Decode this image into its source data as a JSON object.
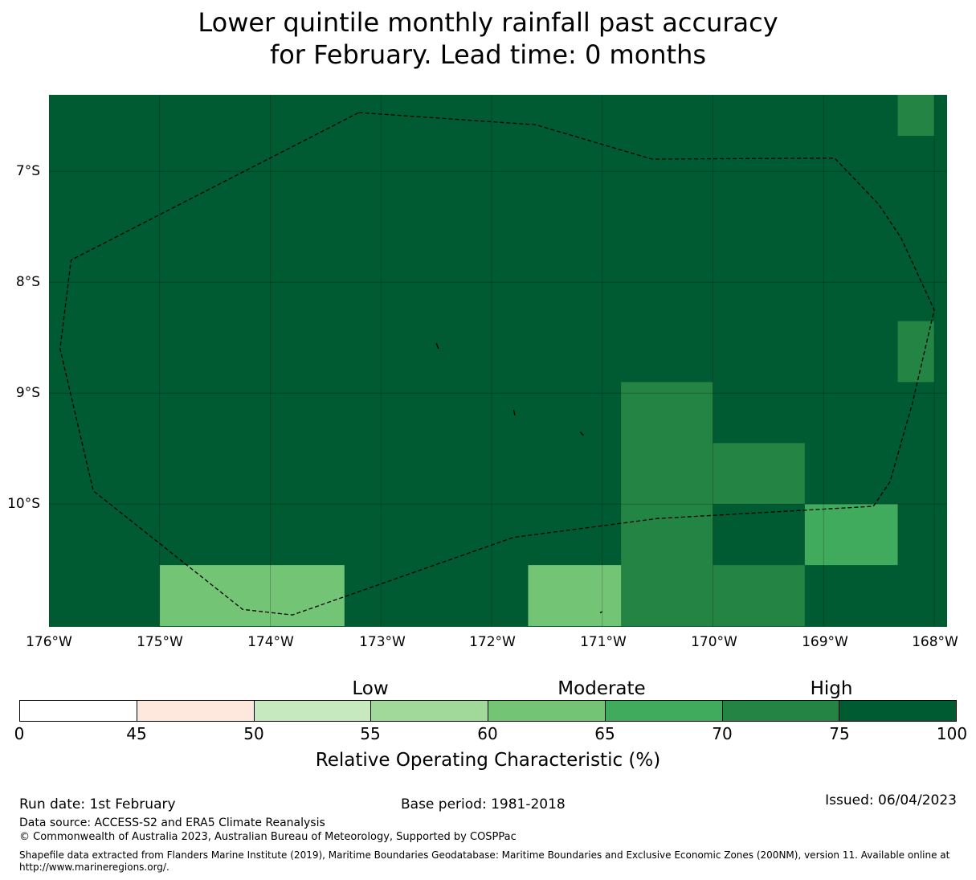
{
  "title": {
    "line1": "Lower quintile monthly rainfall past accuracy",
    "line2": "for February. Lead time: 0 months"
  },
  "map": {
    "latitude_labels": [
      "7°S",
      "8°S",
      "9°S",
      "10°S"
    ],
    "longitude_labels": [
      "176°W",
      "175°W",
      "174°W",
      "173°W",
      "172°W",
      "171°W",
      "170°W",
      "169°W",
      "168°W"
    ],
    "base_color": "#005a32",
    "cells": [
      {
        "lon_w": 168.33,
        "lon_e": 168.0,
        "lat_n": 6.31,
        "lat_s": 6.68,
        "color": "#238443"
      },
      {
        "lon_w": 168.33,
        "lon_e": 168.0,
        "lat_n": 8.35,
        "lat_s": 8.9,
        "color": "#238443"
      },
      {
        "lon_w": 170.83,
        "lon_e": 170.0,
        "lat_n": 8.9,
        "lat_s": 11.1,
        "color": "#238443"
      },
      {
        "lon_w": 170.0,
        "lon_e": 169.17,
        "lat_n": 9.45,
        "lat_s": 10.0,
        "color": "#238443"
      },
      {
        "lon_w": 170.0,
        "lon_e": 169.17,
        "lat_n": 10.55,
        "lat_s": 11.1,
        "color": "#238443"
      },
      {
        "lon_w": 169.17,
        "lon_e": 168.33,
        "lat_n": 10.0,
        "lat_s": 10.55,
        "color": "#41ab5d"
      },
      {
        "lon_w": 175.0,
        "lon_e": 173.33,
        "lat_n": 10.55,
        "lat_s": 11.1,
        "color": "#74c476"
      },
      {
        "lon_w": 171.67,
        "lon_e": 170.83,
        "lat_n": 10.55,
        "lat_s": 11.1,
        "color": "#74c476"
      }
    ],
    "eez_boundary": [
      [
        173.2,
        6.47
      ],
      [
        171.6,
        6.58
      ],
      [
        170.55,
        6.89
      ],
      [
        168.9,
        6.88
      ],
      [
        168.5,
        7.3
      ],
      [
        168.3,
        7.6
      ],
      [
        168.0,
        8.25
      ],
      [
        168.2,
        9.1
      ],
      [
        168.4,
        9.8
      ],
      [
        168.55,
        10.02
      ],
      [
        170.5,
        10.13
      ],
      [
        171.8,
        10.3
      ],
      [
        173.8,
        11.0
      ],
      [
        174.25,
        10.95
      ],
      [
        175.6,
        9.88
      ],
      [
        175.9,
        8.6
      ],
      [
        175.8,
        7.8
      ],
      [
        173.2,
        6.47
      ]
    ],
    "islands": [
      [
        [
          172.5,
          8.55
        ],
        [
          172.48,
          8.6
        ]
      ],
      [
        [
          171.8,
          9.15
        ],
        [
          171.79,
          9.2
        ]
      ],
      [
        [
          171.2,
          9.35
        ],
        [
          171.17,
          9.38
        ]
      ],
      [
        [
          171.0,
          10.97
        ],
        [
          171.02,
          10.98
        ]
      ]
    ]
  },
  "colorbar": {
    "categories": [
      "Low",
      "Moderate",
      "High"
    ],
    "ticks": [
      "0",
      "45",
      "50",
      "55",
      "60",
      "65",
      "70",
      "75",
      "100"
    ],
    "colors": [
      "#ffffff",
      "#fee8de",
      "#c7e9c0",
      "#a1d99b",
      "#74c476",
      "#41ab5d",
      "#238443",
      "#005a32"
    ],
    "label": "Relative Operating Characteristic (%)"
  },
  "footer": {
    "run_date": "Run date: 1st February",
    "base_period": "Base period: 1981-2018",
    "issued": "Issued: 06/04/2023",
    "data_source": "Data source: ACCESS-S2 and ERA5 Climate Reanalysis",
    "copyright": "© Commonwealth of Australia 2023, Australian Bureau of Meteorology, Supported by COSPPac",
    "shapefile": "Shapefile data extracted from Flanders Marine Institute (2019), Maritime Boundaries Geodatabase: Maritime Boundaries and Exclusive Economic Zones (200NM), version 11. Available online at http://www.marineregions.org/."
  }
}
